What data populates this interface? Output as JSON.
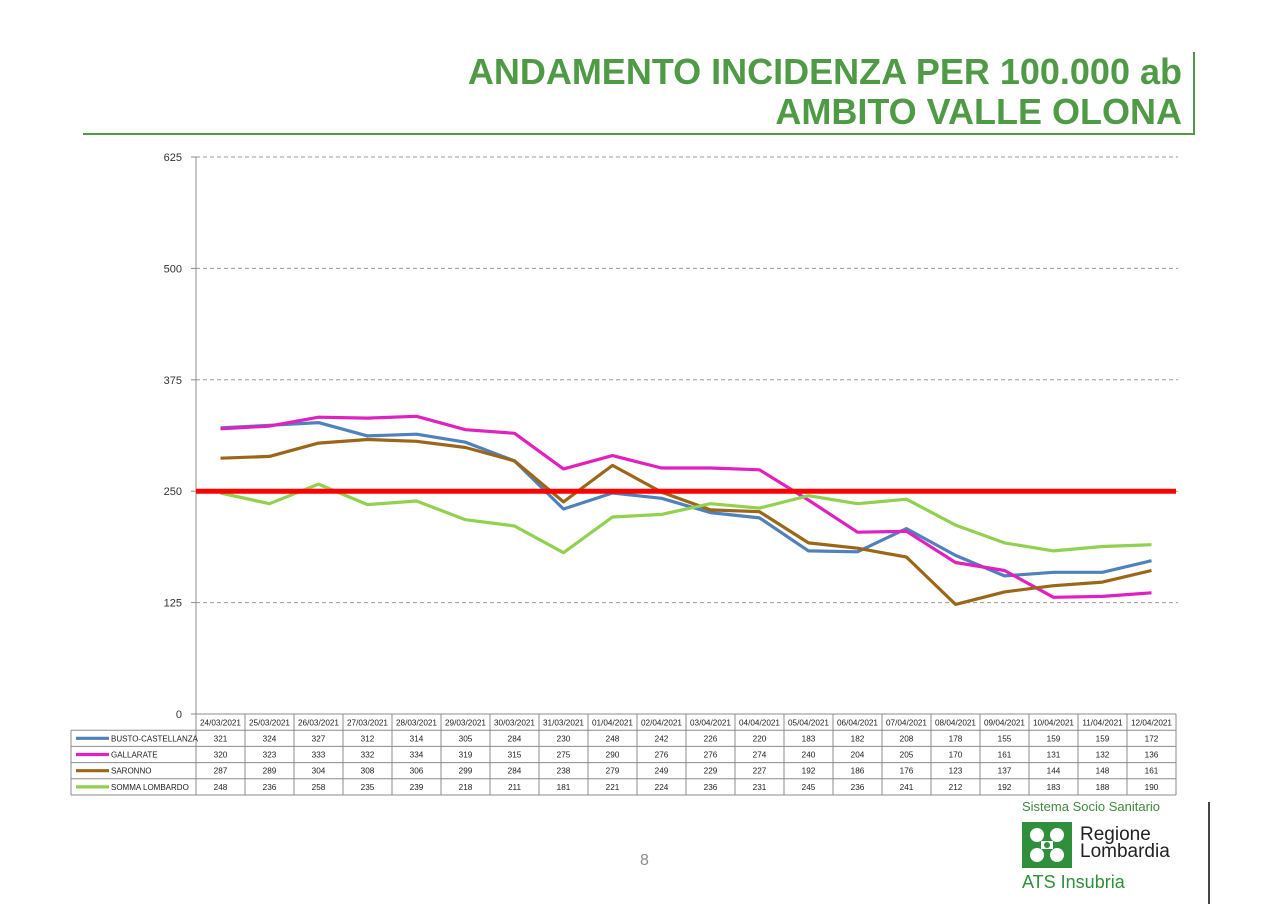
{
  "header": {
    "title_line1": "ANDAMENTO INCIDENZA PER 100.000 ab",
    "title_line2": "AMBITO VALLE OLONA"
  },
  "chart_data": {
    "type": "line",
    "ylim": [
      0,
      625
    ],
    "yticks": [
      0,
      125,
      250,
      375,
      500,
      625
    ],
    "grid": true,
    "threshold": {
      "value": 250,
      "color": "#ff0000"
    },
    "categories": [
      "24/03/2021",
      "25/03/2021",
      "26/03/2021",
      "27/03/2021",
      "28/03/2021",
      "29/03/2021",
      "30/03/2021",
      "31/03/2021",
      "01/04/2021",
      "02/04/2021",
      "03/04/2021",
      "04/04/2021",
      "05/04/2021",
      "06/04/2021",
      "07/04/2021",
      "08/04/2021",
      "09/04/2021",
      "10/04/2021",
      "11/04/2021",
      "12/04/2021"
    ],
    "series": [
      {
        "name": "BUSTO-CASTELLANZA",
        "color": "#4f81bd",
        "values": [
          321,
          324,
          327,
          312,
          314,
          305,
          284,
          230,
          248,
          242,
          226,
          220,
          183,
          182,
          208,
          178,
          155,
          159,
          159,
          172
        ]
      },
      {
        "name": "GALLARATE",
        "color": "#e020c0",
        "values": [
          320,
          323,
          333,
          332,
          334,
          319,
          315,
          275,
          290,
          276,
          276,
          274,
          240,
          204,
          205,
          170,
          161,
          131,
          132,
          136
        ]
      },
      {
        "name": "SARONNO",
        "color": "#9c6618",
        "values": [
          287,
          289,
          304,
          308,
          306,
          299,
          284,
          238,
          279,
          249,
          229,
          227,
          192,
          186,
          176,
          123,
          137,
          144,
          148,
          161
        ]
      },
      {
        "name": "SOMMA LOMBARDO",
        "color": "#92d050",
        "values": [
          248,
          236,
          258,
          235,
          239,
          218,
          211,
          181,
          221,
          224,
          236,
          231,
          245,
          236,
          241,
          212,
          192,
          183,
          188,
          190
        ]
      }
    ],
    "legend": "table-below"
  },
  "footer": {
    "page_number": "8",
    "system": "Sistema Socio Sanitario",
    "logo_line1": "Regione",
    "logo_line2": "Lombardia",
    "ats": "ATS Insubria"
  }
}
